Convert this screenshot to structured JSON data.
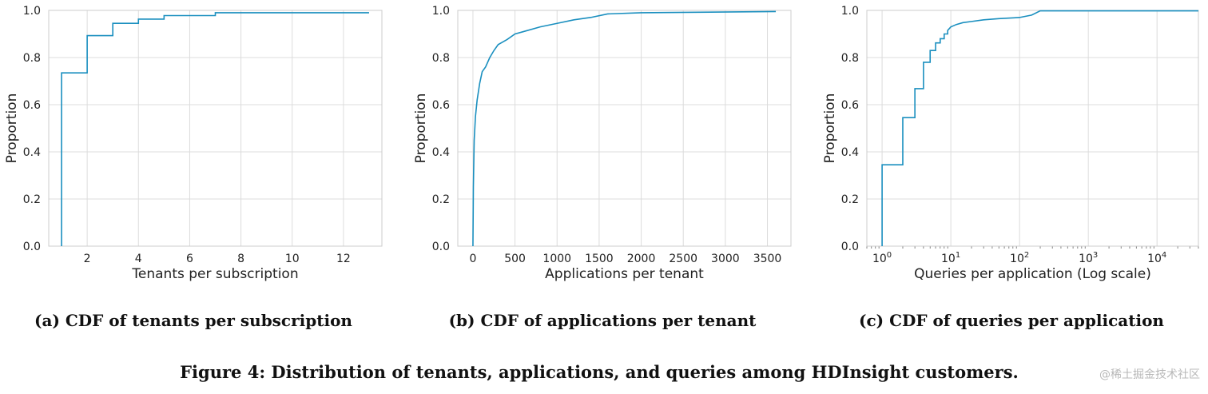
{
  "figure": {
    "caption": "Figure 4: Distribution of tenants, applications, and queries among HDInsight customers.",
    "watermark": "@稀土掘金技术社区",
    "line_color": "#1a8fbf",
    "grid_color": "#dcdcdc"
  },
  "chart_data": [
    {
      "type": "line",
      "subtype": "step-cdf",
      "caption": "(a) CDF of tenants per subscription",
      "xlabel": "Tenants per subscription",
      "ylabel": "Proportion",
      "xscale": "linear",
      "xlim": [
        0.5,
        13.5
      ],
      "ylim": [
        0,
        1.0
      ],
      "xticks": [
        2,
        4,
        6,
        8,
        10,
        12
      ],
      "yticks": [
        0.0,
        0.2,
        0.4,
        0.6,
        0.8,
        1.0
      ],
      "grid": true,
      "series": [
        {
          "x": [
            1,
            1,
            2,
            2,
            3,
            3,
            4,
            4,
            5,
            5,
            7,
            7,
            13
          ],
          "y": [
            0,
            0.735,
            0.735,
            0.893,
            0.893,
            0.945,
            0.945,
            0.963,
            0.963,
            0.978,
            0.978,
            0.99,
            0.99
          ]
        }
      ]
    },
    {
      "type": "line",
      "subtype": "step-cdf",
      "caption": "(b) CDF of applications per tenant",
      "xlabel": "Applications per tenant",
      "ylabel": "Proportion",
      "xscale": "linear",
      "xlim": [
        -180,
        3780
      ],
      "ylim": [
        0,
        1.0
      ],
      "xticks": [
        0,
        500,
        1000,
        1500,
        2000,
        2500,
        3000,
        3500
      ],
      "yticks": [
        0.0,
        0.2,
        0.4,
        0.6,
        0.8,
        1.0
      ],
      "grid": true,
      "series": [
        {
          "x": [
            0,
            5,
            15,
            30,
            50,
            80,
            110,
            150,
            200,
            250,
            300,
            350,
            400,
            500,
            600,
            800,
            1000,
            1200,
            1400,
            1600,
            2000,
            3600
          ],
          "y": [
            0,
            0.25,
            0.45,
            0.55,
            0.62,
            0.69,
            0.74,
            0.76,
            0.8,
            0.83,
            0.855,
            0.865,
            0.875,
            0.9,
            0.91,
            0.93,
            0.945,
            0.96,
            0.97,
            0.985,
            0.99,
            0.995
          ]
        }
      ]
    },
    {
      "type": "line",
      "subtype": "step-cdf",
      "caption": "(c) CDF of queries per application",
      "xlabel": "Queries per application (Log scale)",
      "ylabel": "Proportion",
      "xscale": "log",
      "xlim": [
        0.6,
        40000
      ],
      "ylim": [
        0,
        1.0
      ],
      "xticks": [
        1,
        10,
        100,
        1000,
        10000
      ],
      "xticklabels": [
        "10^0",
        "10^1",
        "10^2",
        "10^3",
        "10^4"
      ],
      "yticks": [
        0.0,
        0.2,
        0.4,
        0.6,
        0.8,
        1.0
      ],
      "grid": true,
      "series": [
        {
          "x": [
            1,
            1,
            2,
            2,
            3,
            3,
            4,
            4,
            5,
            5,
            6,
            6,
            7,
            7,
            8,
            8,
            9,
            9,
            10,
            12,
            15,
            20,
            30,
            50,
            100,
            150,
            200,
            40000
          ],
          "y": [
            0,
            0.345,
            0.345,
            0.545,
            0.545,
            0.668,
            0.668,
            0.78,
            0.78,
            0.83,
            0.83,
            0.862,
            0.862,
            0.88,
            0.88,
            0.9,
            0.9,
            0.915,
            0.93,
            0.94,
            0.948,
            0.953,
            0.96,
            0.965,
            0.97,
            0.98,
            0.998,
            0.998
          ]
        }
      ]
    }
  ]
}
